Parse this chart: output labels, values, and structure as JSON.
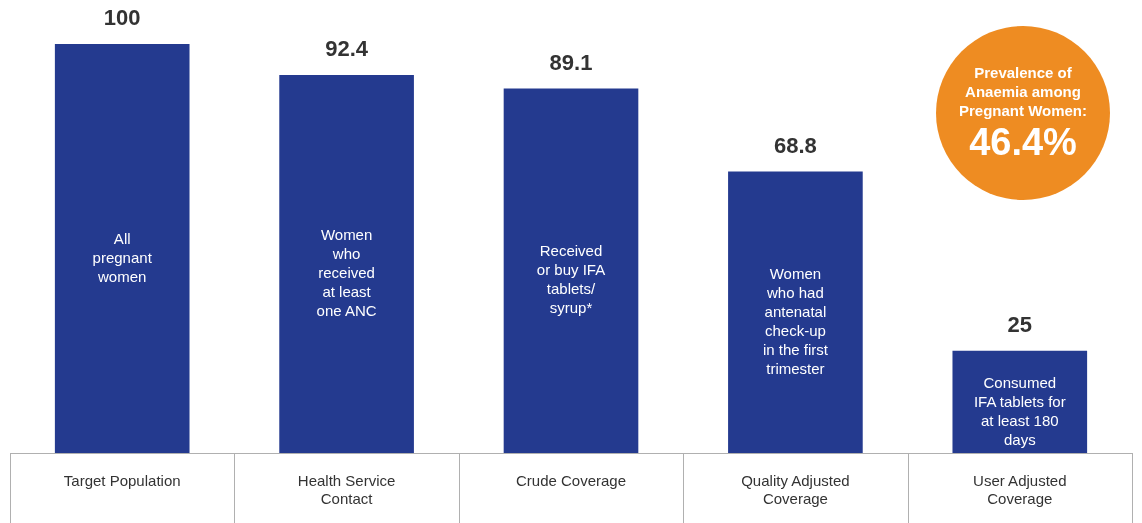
{
  "chart_data": {
    "type": "bar",
    "categories": [
      "Target Population",
      "Health Service Contact",
      "Crude Coverage",
      "Quality Adjusted Coverage",
      "User Adjusted Coverage"
    ],
    "values": [
      100,
      92.4,
      89.1,
      68.8,
      25
    ],
    "color": "#243a8f",
    "ylim": [
      0,
      100
    ],
    "data_labels": true,
    "annotations": [
      "All\npregnant\nwomen",
      "Women\nwho\nreceived\nat least\none ANC",
      "Received\nor buy IFA\ntablets/\nsyrup*",
      "Women\nwho had\nantenatal\ncheck-up\nin the first\ntrimester",
      "Consumed\nIFA tablets for\nat least 180\ndays",
      "Prevalence of\nAnaemia among\nPregnant Women:\n46.4%"
    ]
  }
}
